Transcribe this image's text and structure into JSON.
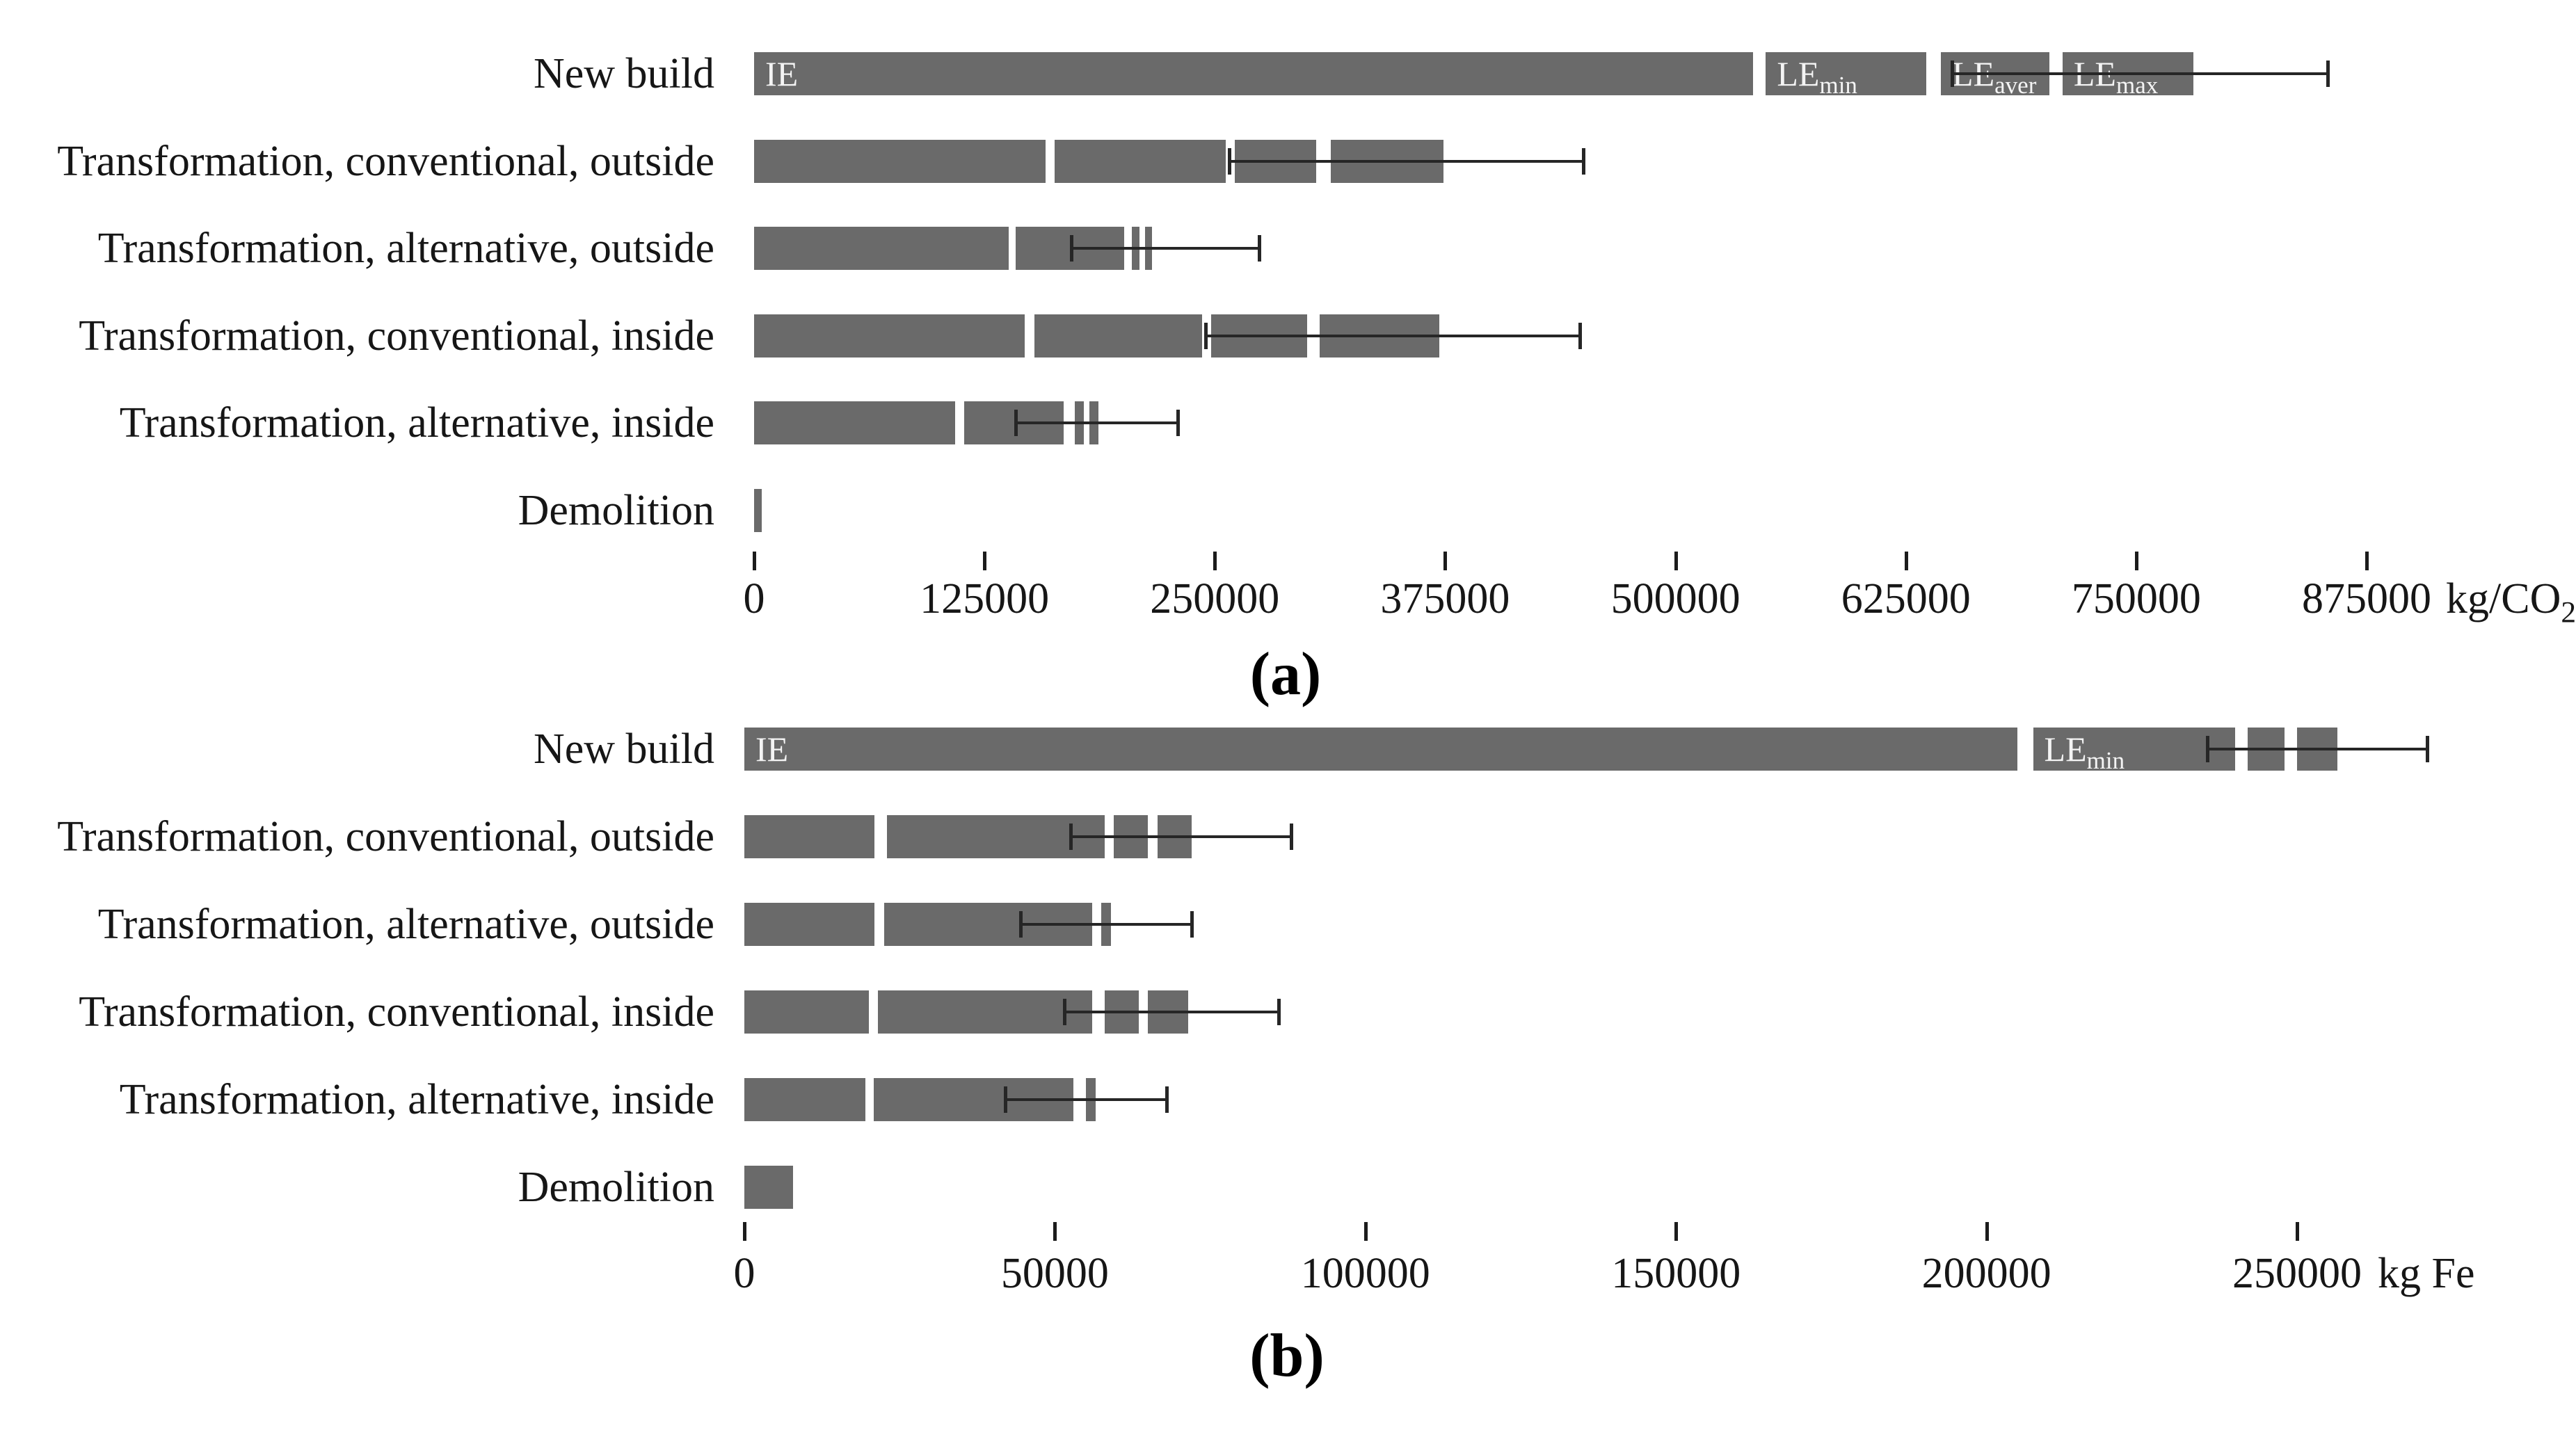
{
  "figure": {
    "background": "#ffffff",
    "bar_color": "#6a6a6a",
    "error_bar_color": "#262626",
    "text_color": "#161616",
    "segment_label_color": "#f4f4f4"
  },
  "chart_data": [
    {
      "id": "a",
      "type": "bar",
      "orientation": "horizontal",
      "caption": "(a)",
      "unit_main": "kg/CO",
      "unit_sub": "2",
      "xlabel": "kg/CO2",
      "axis": {
        "ticks": [
          0,
          125000,
          250000,
          375000,
          500000,
          625000,
          750000,
          875000
        ],
        "xlim": [
          0,
          875000
        ],
        "grid": false
      },
      "legend_inline": [
        "IE",
        "LEmin",
        "LEaver",
        "LEmax"
      ],
      "categories": [
        "New build",
        "Transformation, conventional, outside",
        "Transformation, alternative, outside",
        "Transformation, conventional, inside",
        "Transformation, alternative, inside",
        "Demolition"
      ],
      "rows": [
        {
          "label": "New build",
          "segments": [
            {
              "name": "IE",
              "text": "IE",
              "sub": "",
              "from": 0,
              "to": 542000
            },
            {
              "name": "LE-min",
              "text": "LE",
              "sub": "min",
              "from": 549000,
              "to": 636000
            },
            {
              "name": "LE-aver",
              "text": "LE",
              "sub": "aver",
              "from": 644000,
              "to": 703000
            },
            {
              "name": "LE-max",
              "text": "LE",
              "sub": "max",
              "from": 710000,
              "to": 781000
            }
          ],
          "err": {
            "from": 650000,
            "to": 854000
          }
        },
        {
          "label": "Transformation, conventional, outside",
          "segments": [
            {
              "name": "IE",
              "text": "",
              "sub": "",
              "from": 0,
              "to": 158000
            },
            {
              "name": "LE-min",
              "text": "",
              "sub": "",
              "from": 163000,
              "to": 256000
            },
            {
              "name": "LE-aver",
              "text": "",
              "sub": "",
              "from": 261000,
              "to": 305000
            },
            {
              "name": "LE-max",
              "text": "",
              "sub": "",
              "from": 313000,
              "to": 374000
            }
          ],
          "err": {
            "from": 258000,
            "to": 450000
          }
        },
        {
          "label": "Transformation, alternative, outside",
          "segments": [
            {
              "name": "IE",
              "text": "",
              "sub": "",
              "from": 0,
              "to": 138000
            },
            {
              "name": "LE-min",
              "text": "",
              "sub": "",
              "from": 142000,
              "to": 201000
            },
            {
              "name": "LE-aver",
              "text": "",
              "sub": "",
              "from": 205000,
              "to": 209000
            },
            {
              "name": "LE-max",
              "text": "",
              "sub": "",
              "from": 212000,
              "to": 216000
            }
          ],
          "err": {
            "from": 172000,
            "to": 274000
          }
        },
        {
          "label": "Transformation, conventional, inside",
          "segments": [
            {
              "name": "IE",
              "text": "",
              "sub": "",
              "from": 0,
              "to": 147000
            },
            {
              "name": "LE-min",
              "text": "",
              "sub": "",
              "from": 152000,
              "to": 243000
            },
            {
              "name": "LE-aver",
              "text": "",
              "sub": "",
              "from": 248000,
              "to": 300000
            },
            {
              "name": "LE-max",
              "text": "",
              "sub": "",
              "from": 307000,
              "to": 372000
            }
          ],
          "err": {
            "from": 245000,
            "to": 448000
          }
        },
        {
          "label": "Transformation, alternative, inside",
          "segments": [
            {
              "name": "IE",
              "text": "",
              "sub": "",
              "from": 0,
              "to": 109000
            },
            {
              "name": "LE-min",
              "text": "",
              "sub": "",
              "from": 114000,
              "to": 168000
            },
            {
              "name": "LE-aver",
              "text": "",
              "sub": "",
              "from": 174000,
              "to": 179000
            },
            {
              "name": "LE-max",
              "text": "",
              "sub": "",
              "from": 182000,
              "to": 187000
            }
          ],
          "err": {
            "from": 142000,
            "to": 230000
          }
        },
        {
          "label": "Demolition",
          "segments": [
            {
              "name": "IE",
              "text": "",
              "sub": "",
              "from": 0,
              "to": 4000
            }
          ],
          "err": null
        }
      ]
    },
    {
      "id": "b",
      "type": "bar",
      "orientation": "horizontal",
      "caption": "(b)",
      "unit_main": "kg Fe",
      "unit_sub": "",
      "xlabel": "kg Fe",
      "axis": {
        "ticks": [
          0,
          50000,
          100000,
          150000,
          200000,
          250000
        ],
        "xlim": [
          0,
          250000
        ],
        "grid": false
      },
      "legend_inline": [
        "IE",
        "LEmin"
      ],
      "categories": [
        "New build",
        "Transformation, conventional, outside",
        "Transformation, alternative, outside",
        "Transformation, conventional, inside",
        "Transformation, alternative, inside",
        "Demolition"
      ],
      "rows": [
        {
          "label": "New build",
          "segments": [
            {
              "name": "IE",
              "text": "IE",
              "sub": "",
              "from": 0,
              "to": 205000
            },
            {
              "name": "LE-min",
              "text": "LE",
              "sub": "min",
              "from": 207500,
              "to": 240000
            },
            {
              "name": "LE-aver",
              "text": "",
              "sub": "",
              "from": 242000,
              "to": 248000
            },
            {
              "name": "LE-max",
              "text": "",
              "sub": "",
              "from": 250000,
              "to": 256500
            }
          ],
          "err": {
            "from": 235500,
            "to": 271000
          }
        },
        {
          "label": "Transformation, conventional, outside",
          "segments": [
            {
              "name": "IE",
              "text": "",
              "sub": "",
              "from": 0,
              "to": 21000
            },
            {
              "name": "LE-min",
              "text": "",
              "sub": "",
              "from": 23000,
              "to": 58000
            },
            {
              "name": "LE-aver",
              "text": "",
              "sub": "",
              "from": 59500,
              "to": 65000
            },
            {
              "name": "LE-max",
              "text": "",
              "sub": "",
              "from": 66500,
              "to": 72000
            }
          ],
          "err": {
            "from": 52500,
            "to": 88000
          }
        },
        {
          "label": "Transformation, alternative, outside",
          "segments": [
            {
              "name": "IE",
              "text": "",
              "sub": "",
              "from": 0,
              "to": 21000
            },
            {
              "name": "LE-min",
              "text": "",
              "sub": "",
              "from": 22500,
              "to": 56000
            },
            {
              "name": "LE-aver",
              "text": "",
              "sub": "",
              "from": 57500,
              "to": 59000
            }
          ],
          "err": {
            "from": 44500,
            "to": 72000
          }
        },
        {
          "label": "Transformation, conventional, inside",
          "segments": [
            {
              "name": "IE",
              "text": "",
              "sub": "",
              "from": 0,
              "to": 20000
            },
            {
              "name": "LE-min",
              "text": "",
              "sub": "",
              "from": 21500,
              "to": 56000
            },
            {
              "name": "LE-aver",
              "text": "",
              "sub": "",
              "from": 58000,
              "to": 63500
            },
            {
              "name": "LE-max",
              "text": "",
              "sub": "",
              "from": 65000,
              "to": 71500
            }
          ],
          "err": {
            "from": 51500,
            "to": 86000
          }
        },
        {
          "label": "Transformation, alternative, inside",
          "segments": [
            {
              "name": "IE",
              "text": "",
              "sub": "",
              "from": 0,
              "to": 19500
            },
            {
              "name": "LE-min",
              "text": "",
              "sub": "",
              "from": 20800,
              "to": 53000
            },
            {
              "name": "LE-aver",
              "text": "",
              "sub": "",
              "from": 55000,
              "to": 56600
            }
          ],
          "err": {
            "from": 42000,
            "to": 68000
          }
        },
        {
          "label": "Demolition",
          "segments": [
            {
              "name": "IE",
              "text": "",
              "sub": "",
              "from": 0,
              "to": 7800
            }
          ],
          "err": null
        }
      ]
    }
  ]
}
